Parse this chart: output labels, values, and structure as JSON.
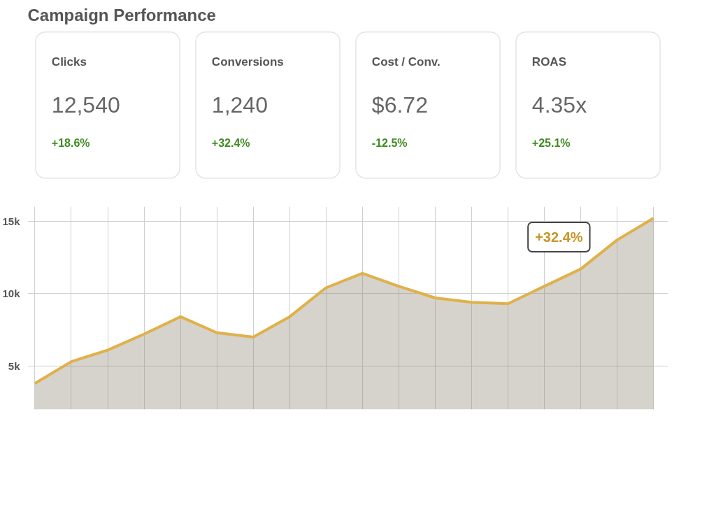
{
  "chart_data": [
    {
      "type": "other",
      "title": "Campaign Performance",
      "annotations": [
        "Clicks",
        "12,540",
        "+18.6%",
        "Conversions",
        "1,240",
        "+32.4%",
        "Cost / Conv.",
        "$6.72",
        "-12.5%",
        "ROAS",
        "4.35x",
        "+25.1%"
      ]
    },
    {
      "type": "area",
      "categories": [
        null,
        null,
        null,
        null,
        null,
        null,
        null,
        null,
        null,
        null,
        null,
        null,
        null,
        null,
        null,
        null,
        null,
        null
      ],
      "series": [
        {
          "color": "#e0b04a",
          "values": [
            3800,
            5300,
            6100,
            7200,
            8400,
            7300,
            7000,
            8400,
            10400,
            11400,
            10500,
            9700,
            9400,
            9300,
            10500,
            11700,
            13700,
            15200
          ]
        }
      ],
      "ylim": [
        2000,
        16000
      ],
      "yticks": [
        {
          "value": 5000,
          "label": "5k"
        },
        {
          "value": 10000,
          "label": "10k"
        },
        {
          "value": 15000,
          "label": "15k"
        }
      ],
      "grid": true,
      "annotations": [
        "+32.4%"
      ]
    }
  ]
}
